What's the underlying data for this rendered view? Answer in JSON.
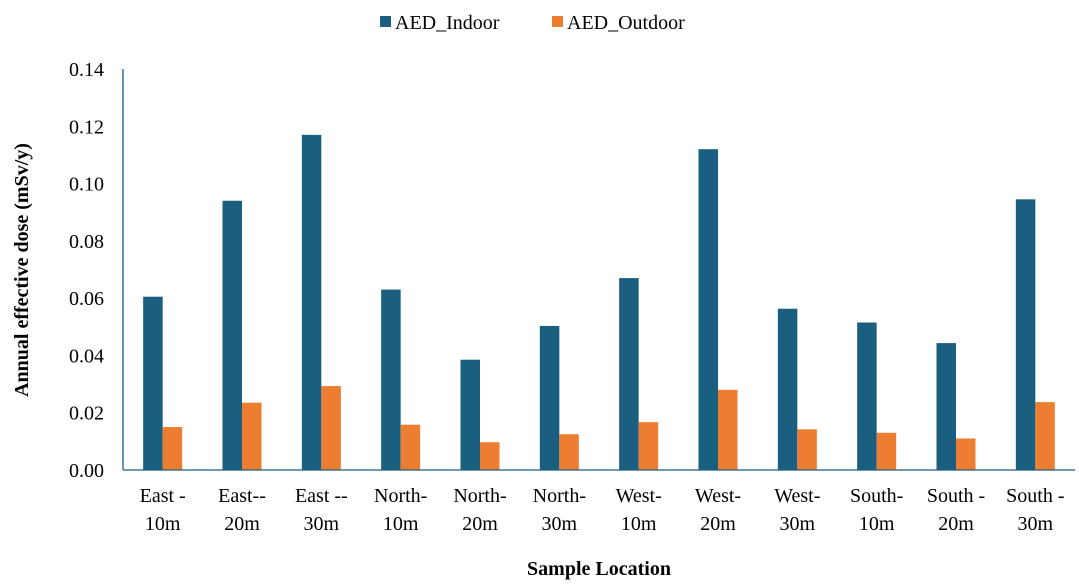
{
  "chart_data": {
    "type": "bar",
    "title": "",
    "xlabel": "Sample Location",
    "ylabel": "Annual effective dose (mSv/y)",
    "ylim": [
      0,
      0.14
    ],
    "yticks": [
      "0.00",
      "0.02",
      "0.04",
      "0.06",
      "0.08",
      "0.10",
      "0.12",
      "0.14"
    ],
    "grid": false,
    "legend_position": "top",
    "categories": [
      [
        "East -",
        "10m"
      ],
      [
        "East--",
        "20m"
      ],
      [
        "East --",
        "30m"
      ],
      [
        "North-",
        "10m"
      ],
      [
        "North-",
        "20m"
      ],
      [
        "North-",
        "30m"
      ],
      [
        "West-",
        "10m"
      ],
      [
        "West-",
        "20m"
      ],
      [
        "West-",
        "30m"
      ],
      [
        "South-",
        "10m"
      ],
      [
        "South -",
        "20m"
      ],
      [
        "South -",
        "30m"
      ]
    ],
    "series": [
      {
        "name": "AED_Indoor",
        "color": "#1a5f7f",
        "values": [
          0.0605,
          0.094,
          0.117,
          0.063,
          0.0385,
          0.0503,
          0.067,
          0.112,
          0.0563,
          0.0515,
          0.0443,
          0.0945
        ]
      },
      {
        "name": "AED_Outdoor",
        "color": "#ed7d31",
        "values": [
          0.015,
          0.0235,
          0.0293,
          0.0158,
          0.0097,
          0.0125,
          0.0167,
          0.028,
          0.0142,
          0.013,
          0.011,
          0.0237
        ]
      }
    ]
  }
}
